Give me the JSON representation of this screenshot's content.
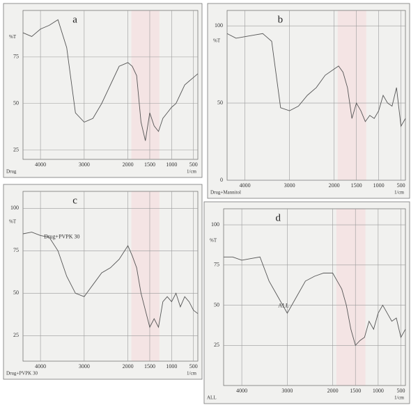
{
  "chart_data": [
    {
      "type": "line",
      "panel_label": "a",
      "y_label": "%T",
      "x_label": "1/cm",
      "caption": "Drug",
      "x": [
        4400,
        4200,
        4000,
        3800,
        3600,
        3400,
        3200,
        3000,
        2800,
        2600,
        2400,
        2200,
        2000,
        1900,
        1800,
        1700,
        1600,
        1500,
        1400,
        1300,
        1200,
        1100,
        1000,
        900,
        800,
        700,
        600,
        500,
        400
      ],
      "series": [
        {
          "color": "#555555",
          "values": [
            88,
            86,
            90,
            92,
            95,
            80,
            45,
            40,
            42,
            50,
            60,
            70,
            72,
            70,
            65,
            40,
            30,
            45,
            38,
            35,
            42,
            45,
            48,
            50,
            55,
            60,
            62,
            64,
            66
          ]
        }
      ],
      "xlim": [
        4400,
        400
      ],
      "ylim": [
        20,
        100
      ],
      "xticks": [
        4000,
        3000,
        2000,
        1500,
        1000,
        500
      ],
      "yticks": [
        75,
        50,
        25
      ],
      "grid": true
    },
    {
      "type": "line",
      "panel_label": "b",
      "y_label": "%T",
      "x_label": "1/cm",
      "caption": "Drug+Mannitol",
      "x": [
        4400,
        4200,
        4000,
        3800,
        3600,
        3400,
        3200,
        3000,
        2800,
        2600,
        2400,
        2200,
        2000,
        1900,
        1800,
        1700,
        1600,
        1500,
        1400,
        1300,
        1200,
        1100,
        1000,
        900,
        800,
        700,
        600,
        500,
        400
      ],
      "series": [
        {
          "color": "#555555",
          "values": [
            95,
            92,
            93,
            94,
            95,
            90,
            47,
            45,
            48,
            55,
            60,
            68,
            72,
            74,
            70,
            60,
            40,
            50,
            45,
            38,
            42,
            40,
            45,
            55,
            50,
            48,
            60,
            35,
            40
          ]
        }
      ],
      "xlim": [
        4400,
        400
      ],
      "ylim": [
        0,
        110
      ],
      "xticks": [
        4000,
        3000,
        2000,
        1500,
        1000,
        500
      ],
      "yticks": [
        100,
        50,
        0
      ],
      "grid": true
    },
    {
      "type": "line",
      "panel_label": "c",
      "y_label": "%T",
      "x_label": "1/cm",
      "caption": "Drug+PVPK 30",
      "annotation": "Drug+PVPK 30",
      "x": [
        4400,
        4200,
        4000,
        3800,
        3600,
        3400,
        3200,
        3000,
        2800,
        2600,
        2400,
        2200,
        2000,
        1900,
        1800,
        1700,
        1600,
        1500,
        1400,
        1300,
        1200,
        1100,
        1000,
        900,
        800,
        700,
        600,
        500,
        400
      ],
      "series": [
        {
          "color": "#555555",
          "values": [
            85,
            86,
            84,
            83,
            75,
            60,
            50,
            48,
            55,
            62,
            65,
            70,
            78,
            72,
            65,
            50,
            40,
            30,
            35,
            30,
            45,
            48,
            45,
            50,
            42,
            48,
            45,
            40,
            38
          ]
        }
      ],
      "xlim": [
        4400,
        400
      ],
      "ylim": [
        10,
        110
      ],
      "xticks": [
        4000,
        3000,
        2000,
        1500,
        1000,
        500
      ],
      "yticks": [
        100,
        75,
        50,
        25
      ],
      "grid": true
    },
    {
      "type": "line",
      "panel_label": "d",
      "y_label": "%T",
      "x_label": "1/cm",
      "caption": "ALL",
      "annotation": "ALL",
      "x": [
        4400,
        4200,
        4000,
        3800,
        3600,
        3400,
        3200,
        3000,
        2800,
        2600,
        2400,
        2200,
        2000,
        1900,
        1800,
        1700,
        1600,
        1500,
        1400,
        1300,
        1200,
        1100,
        1000,
        900,
        800,
        700,
        600,
        500,
        400
      ],
      "series": [
        {
          "color": "#555555",
          "values": [
            80,
            80,
            78,
            79,
            80,
            65,
            55,
            45,
            55,
            65,
            68,
            70,
            70,
            65,
            60,
            50,
            35,
            25,
            28,
            30,
            40,
            35,
            45,
            50,
            45,
            40,
            42,
            30,
            35
          ]
        }
      ],
      "xlim": [
        4400,
        400
      ],
      "ylim": [
        0,
        110
      ],
      "xticks": [
        4000,
        3000,
        2000,
        1500,
        1000,
        500
      ],
      "yticks": [
        100,
        75,
        50,
        25
      ],
      "grid": true
    }
  ]
}
